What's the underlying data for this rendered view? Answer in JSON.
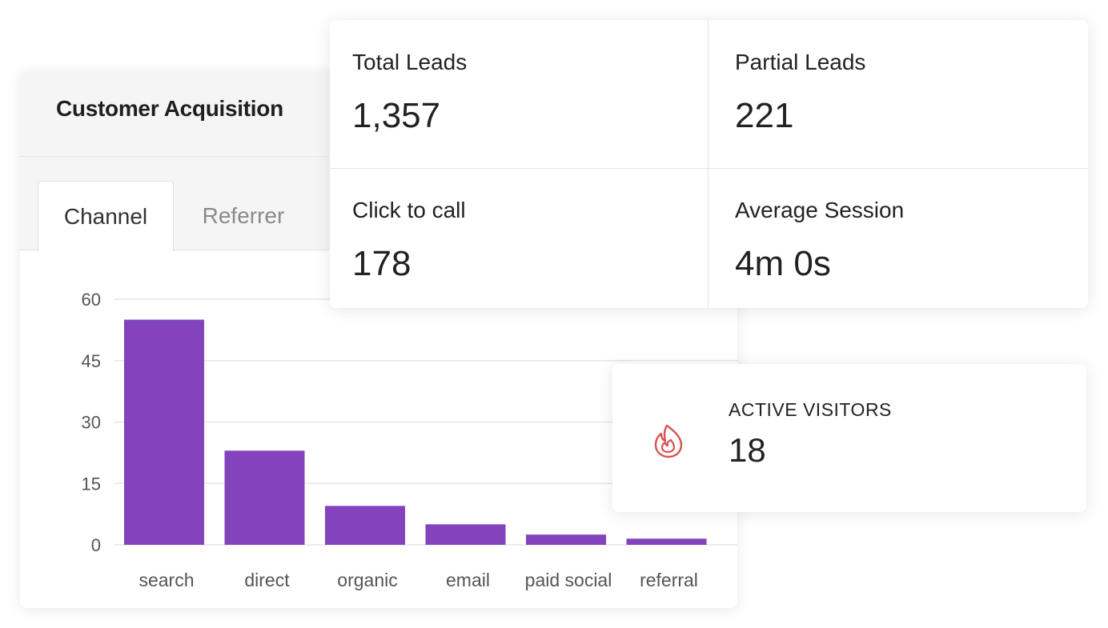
{
  "acquisition": {
    "title": "Customer Acquisition",
    "tabs": [
      {
        "label": "Channel",
        "active": true
      },
      {
        "label": "Referrer",
        "active": false
      }
    ]
  },
  "stats": {
    "total_leads": {
      "label": "Total Leads",
      "value": "1,357"
    },
    "partial_leads": {
      "label": "Partial Leads",
      "value": "221"
    },
    "click_to_call": {
      "label": "Click to call",
      "value": "178"
    },
    "average_session": {
      "label": "Average Session",
      "value": "4m 0s"
    }
  },
  "visitors": {
    "label": "ACTIVE VISITORS",
    "value": "18",
    "icon": "fire-icon",
    "icon_color": "#d9534f"
  },
  "chart_data": {
    "type": "bar",
    "categories": [
      "search",
      "direct",
      "organic",
      "email",
      "paid social",
      "referral"
    ],
    "values": [
      55,
      23,
      9.5,
      5,
      2.5,
      1.5
    ],
    "yticks": [
      0,
      15,
      30,
      45,
      60
    ],
    "ylim": [
      0,
      60
    ],
    "bar_color": "#8243bd",
    "grid": true,
    "title": "",
    "xlabel": "",
    "ylabel": ""
  }
}
